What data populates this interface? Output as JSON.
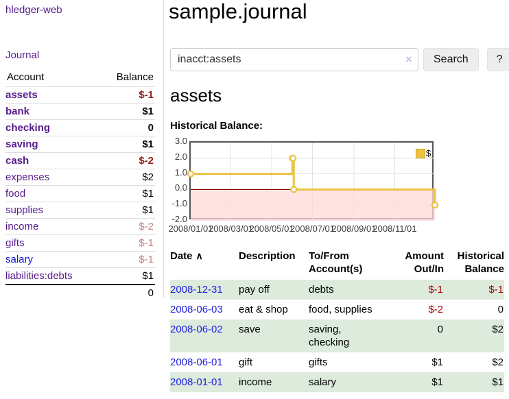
{
  "app": {
    "title": "hledger-web"
  },
  "sidebar": {
    "journal_link": "Journal",
    "accounts_table": {
      "headers": {
        "account": "Account",
        "balance": "Balance"
      },
      "rows": [
        {
          "account": "assets",
          "indent": 1,
          "highlighted": true,
          "balance": "$-1",
          "balance_style": "negative-strong"
        },
        {
          "account": "bank",
          "indent": 2,
          "highlighted": true,
          "balance": "$1",
          "balance_style": "normal"
        },
        {
          "account": "checking",
          "indent": 3,
          "highlighted": true,
          "balance": "0",
          "balance_style": "normal"
        },
        {
          "account": "saving",
          "indent": 3,
          "highlighted": true,
          "balance": "$1",
          "balance_style": "normal"
        },
        {
          "account": "cash",
          "indent": 2,
          "highlighted": true,
          "balance": "$-2",
          "balance_style": "negative-strong"
        },
        {
          "account": "expenses",
          "indent": 1,
          "highlighted": false,
          "balance": "$2",
          "balance_style": "normal"
        },
        {
          "account": "food",
          "indent": 2,
          "highlighted": false,
          "balance": "$1",
          "balance_style": "normal"
        },
        {
          "account": "supplies",
          "indent": 2,
          "highlighted": false,
          "balance": "$1",
          "balance_style": "normal"
        },
        {
          "account": "income",
          "indent": 1,
          "highlighted": false,
          "balance": "$-2",
          "balance_style": "negative-soft"
        },
        {
          "account": "gifts",
          "indent": 2,
          "highlighted": false,
          "balance": "$-1",
          "balance_style": "negative-soft"
        },
        {
          "account": "salary",
          "indent": 2,
          "highlighted": false,
          "link_color": "blue",
          "balance": "$-1",
          "balance_style": "negative-soft"
        },
        {
          "account": "liabilities:debts",
          "indent": 1,
          "highlighted": false,
          "balance": "$1",
          "balance_style": "normal"
        }
      ],
      "total": "0"
    }
  },
  "header": {
    "title": "sample.journal"
  },
  "search": {
    "value": "inacct:assets",
    "clear_icon": "×",
    "button_label": "Search",
    "help_label": "?"
  },
  "account_page": {
    "title": "assets",
    "chart_label": "Historical Balance:"
  },
  "chart_data": {
    "type": "line",
    "step": true,
    "title": "Historical Balance",
    "series": [
      {
        "name": "$",
        "color": "#edc240",
        "points": [
          {
            "date": "2008/01/01",
            "day": 0,
            "value": 1
          },
          {
            "date": "2008/06/01",
            "day": 152,
            "value": 2
          },
          {
            "date": "2008/06/02",
            "day": 153,
            "value": 2
          },
          {
            "date": "2008/06/03",
            "day": 154,
            "value": 0
          },
          {
            "date": "2008/12/31",
            "day": 365,
            "value": -1
          }
        ]
      }
    ],
    "x_ticks": [
      {
        "label": "2008/01/01",
        "day": 0
      },
      {
        "label": "2008/03/01",
        "day": 60
      },
      {
        "label": "2008/05/01",
        "day": 121
      },
      {
        "label": "2008/07/01",
        "day": 182
      },
      {
        "label": "2008/09/01",
        "day": 244
      },
      {
        "label": "2008/11/01",
        "day": 305
      }
    ],
    "y_ticks": [
      "3.0",
      "2.0",
      "1.0",
      "0.0",
      "-1.0",
      "-2.0"
    ],
    "ylim": [
      -2,
      3
    ],
    "xlim_days": [
      0,
      365
    ],
    "grid": true,
    "negative_region_color": "#ffd9d9",
    "zero_line_color": "#8b0000",
    "legend": {
      "label": "$",
      "position": "top-right"
    }
  },
  "transactions": {
    "headers": {
      "date": "Date",
      "sort_icon": "∧",
      "description": "Description",
      "accounts": "To/From Account(s)",
      "amount": "Amount Out/In",
      "balance": "Historical Balance"
    },
    "rows": [
      {
        "date": "2008-12-31",
        "description": "pay off",
        "accounts": "debts",
        "amount": "$-1",
        "amount_negative": true,
        "balance": "$-1",
        "balance_negative": true
      },
      {
        "date": "2008-06-03",
        "description": "eat & shop",
        "accounts": "food, supplies",
        "amount": "$-2",
        "amount_negative": true,
        "balance": "0",
        "balance_negative": false
      },
      {
        "date": "2008-06-02",
        "description": "save",
        "accounts": "saving, checking",
        "amount": "0",
        "amount_negative": false,
        "balance": "$2",
        "balance_negative": false
      },
      {
        "date": "2008-06-01",
        "description": "gift",
        "accounts": "gifts",
        "amount": "$1",
        "amount_negative": false,
        "balance": "$2",
        "balance_negative": false
      },
      {
        "date": "2008-01-01",
        "description": "income",
        "accounts": "salary",
        "amount": "$1",
        "amount_negative": false,
        "balance": "$1",
        "balance_negative": false
      }
    ]
  }
}
